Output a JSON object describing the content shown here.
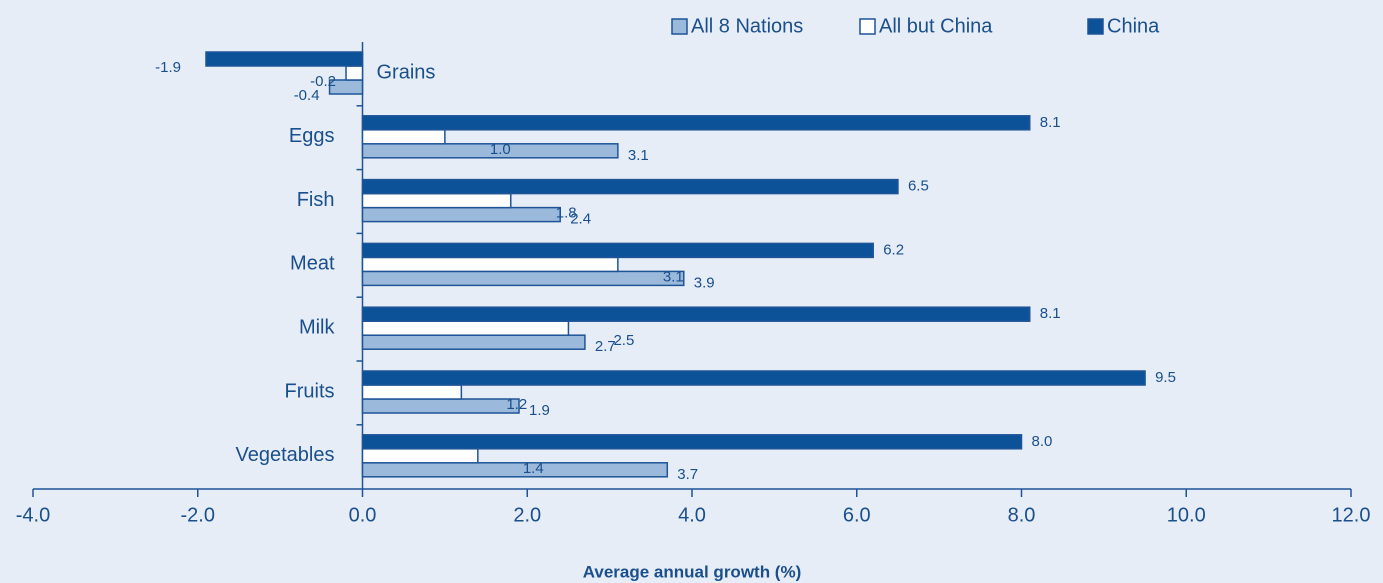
{
  "chart_data": {
    "type": "bar",
    "orientation": "horizontal",
    "x_label": "Average annual growth (%)",
    "categories": [
      "Grains",
      "Eggs",
      "Fish",
      "Meat",
      "Milk",
      "Fruits",
      "Vegetables"
    ],
    "series": [
      {
        "name": "All 8 Nations",
        "color": "#9bb9db",
        "values": [
          -0.4,
          3.1,
          2.4,
          3.9,
          2.7,
          1.9,
          3.7
        ],
        "value_labels": [
          "-0.4",
          "3.1",
          "2.4",
          "3.9",
          "2.7",
          "1.9",
          "3.7"
        ]
      },
      {
        "name": "All but China",
        "color": "#ffffff",
        "values": [
          -0.2,
          1.0,
          1.8,
          3.1,
          2.5,
          1.2,
          1.4
        ],
        "value_labels": [
          "-0.2",
          "1.0",
          "1.8",
          "3.1",
          "2.5",
          "1.2",
          "1.4"
        ]
      },
      {
        "name": "China",
        "color": "#0b5299",
        "values": [
          -1.9,
          8.1,
          6.5,
          6.2,
          8.1,
          9.5,
          8.0
        ],
        "value_labels": [
          "-1.9",
          "8.1",
          "6.5",
          "6.2",
          "8.1",
          "9.5",
          "8.0"
        ]
      }
    ],
    "xlim": [
      -4,
      12
    ],
    "xticks": [
      {
        "value": -4,
        "label": "-4.0"
      },
      {
        "value": -2,
        "label": "-2.0"
      },
      {
        "value": 0,
        "label": "0.0"
      },
      {
        "value": 2,
        "label": "2.0"
      },
      {
        "value": 4,
        "label": "4.0"
      },
      {
        "value": 6,
        "label": "6.0"
      },
      {
        "value": 8,
        "label": "8.0"
      },
      {
        "value": 10,
        "label": "10.0"
      },
      {
        "value": 12,
        "label": "12.0"
      }
    ],
    "legend": "top-right"
  }
}
